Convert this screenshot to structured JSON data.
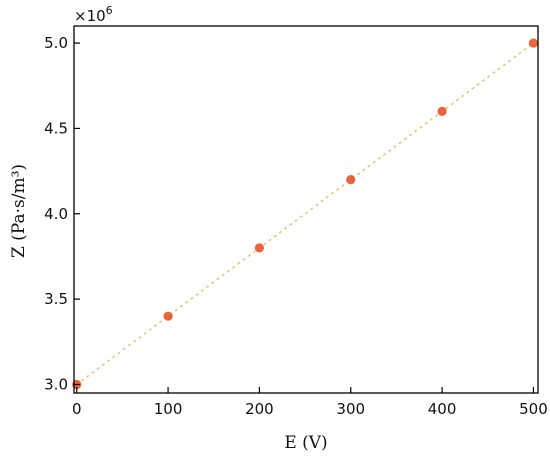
{
  "chart_data": {
    "type": "scatter",
    "xlabel": "E (V)",
    "ylabel": "Z (Pa·s/m³)",
    "y_multiplier": "×10",
    "y_multiplier_exp": "6",
    "xlim": [
      -3,
      505
    ],
    "ylim": [
      2.95,
      5.1
    ],
    "x_ticks": [
      0,
      100,
      200,
      300,
      400,
      500
    ],
    "y_ticks": [
      3.0,
      3.5,
      4.0,
      4.5,
      5.0
    ],
    "x_tick_labels": [
      "0",
      "100",
      "200",
      "300",
      "400",
      "500"
    ],
    "y_tick_labels": [
      "3.0",
      "3.5",
      "4.0",
      "4.5",
      "5.0"
    ],
    "x": [
      0,
      100,
      200,
      300,
      400,
      500
    ],
    "y": [
      3.0,
      3.4,
      3.8,
      4.2,
      4.6,
      5.0
    ],
    "grid": false,
    "marker_color": "#E8643C",
    "trend_line_color": "#E8C37A"
  }
}
